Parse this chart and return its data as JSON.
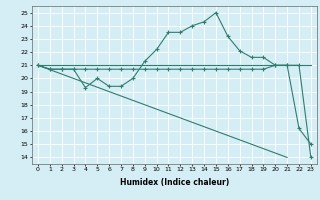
{
  "title": "",
  "xlabel": "Humidex (Indice chaleur)",
  "xlim": [
    -0.5,
    23.5
  ],
  "ylim": [
    13.5,
    25.5
  ],
  "yticks": [
    14,
    15,
    16,
    17,
    18,
    19,
    20,
    21,
    22,
    23,
    24,
    25
  ],
  "xticks": [
    0,
    1,
    2,
    3,
    4,
    5,
    6,
    7,
    8,
    9,
    10,
    11,
    12,
    13,
    14,
    15,
    16,
    17,
    18,
    19,
    20,
    21,
    22,
    23
  ],
  "bg_color": "#d5eef5",
  "grid_color": "#ffffff",
  "line_color": "#2e7d6e",
  "line1_x": [
    0,
    1,
    2,
    3,
    4,
    5,
    6,
    7,
    8,
    9,
    10,
    11,
    12,
    13,
    14,
    15,
    16,
    17,
    18,
    19,
    20,
    21,
    22,
    23
  ],
  "line1_y": [
    21.0,
    20.7,
    20.7,
    20.7,
    19.3,
    20.0,
    19.4,
    19.4,
    20.0,
    21.3,
    22.2,
    23.5,
    23.5,
    24.0,
    24.3,
    25.0,
    23.2,
    22.1,
    21.6,
    21.6,
    21.0,
    21.0,
    16.2,
    15.0
  ],
  "line2_x": [
    0,
    1,
    2,
    3,
    4,
    5,
    6,
    7,
    8,
    9,
    10,
    11,
    12,
    13,
    14,
    15,
    16,
    17,
    18,
    19,
    20,
    21,
    22,
    23
  ],
  "line2_y": [
    21.0,
    20.7,
    20.7,
    20.7,
    20.7,
    20.7,
    20.7,
    20.7,
    20.7,
    20.7,
    20.7,
    20.7,
    20.7,
    20.7,
    20.7,
    20.7,
    20.7,
    20.7,
    20.7,
    20.7,
    21.0,
    21.0,
    21.0,
    14.0
  ],
  "line3_x": [
    0,
    23
  ],
  "line3_y": [
    21.0,
    21.0
  ],
  "line4_x": [
    0,
    21
  ],
  "line4_y": [
    21.0,
    14.0
  ]
}
